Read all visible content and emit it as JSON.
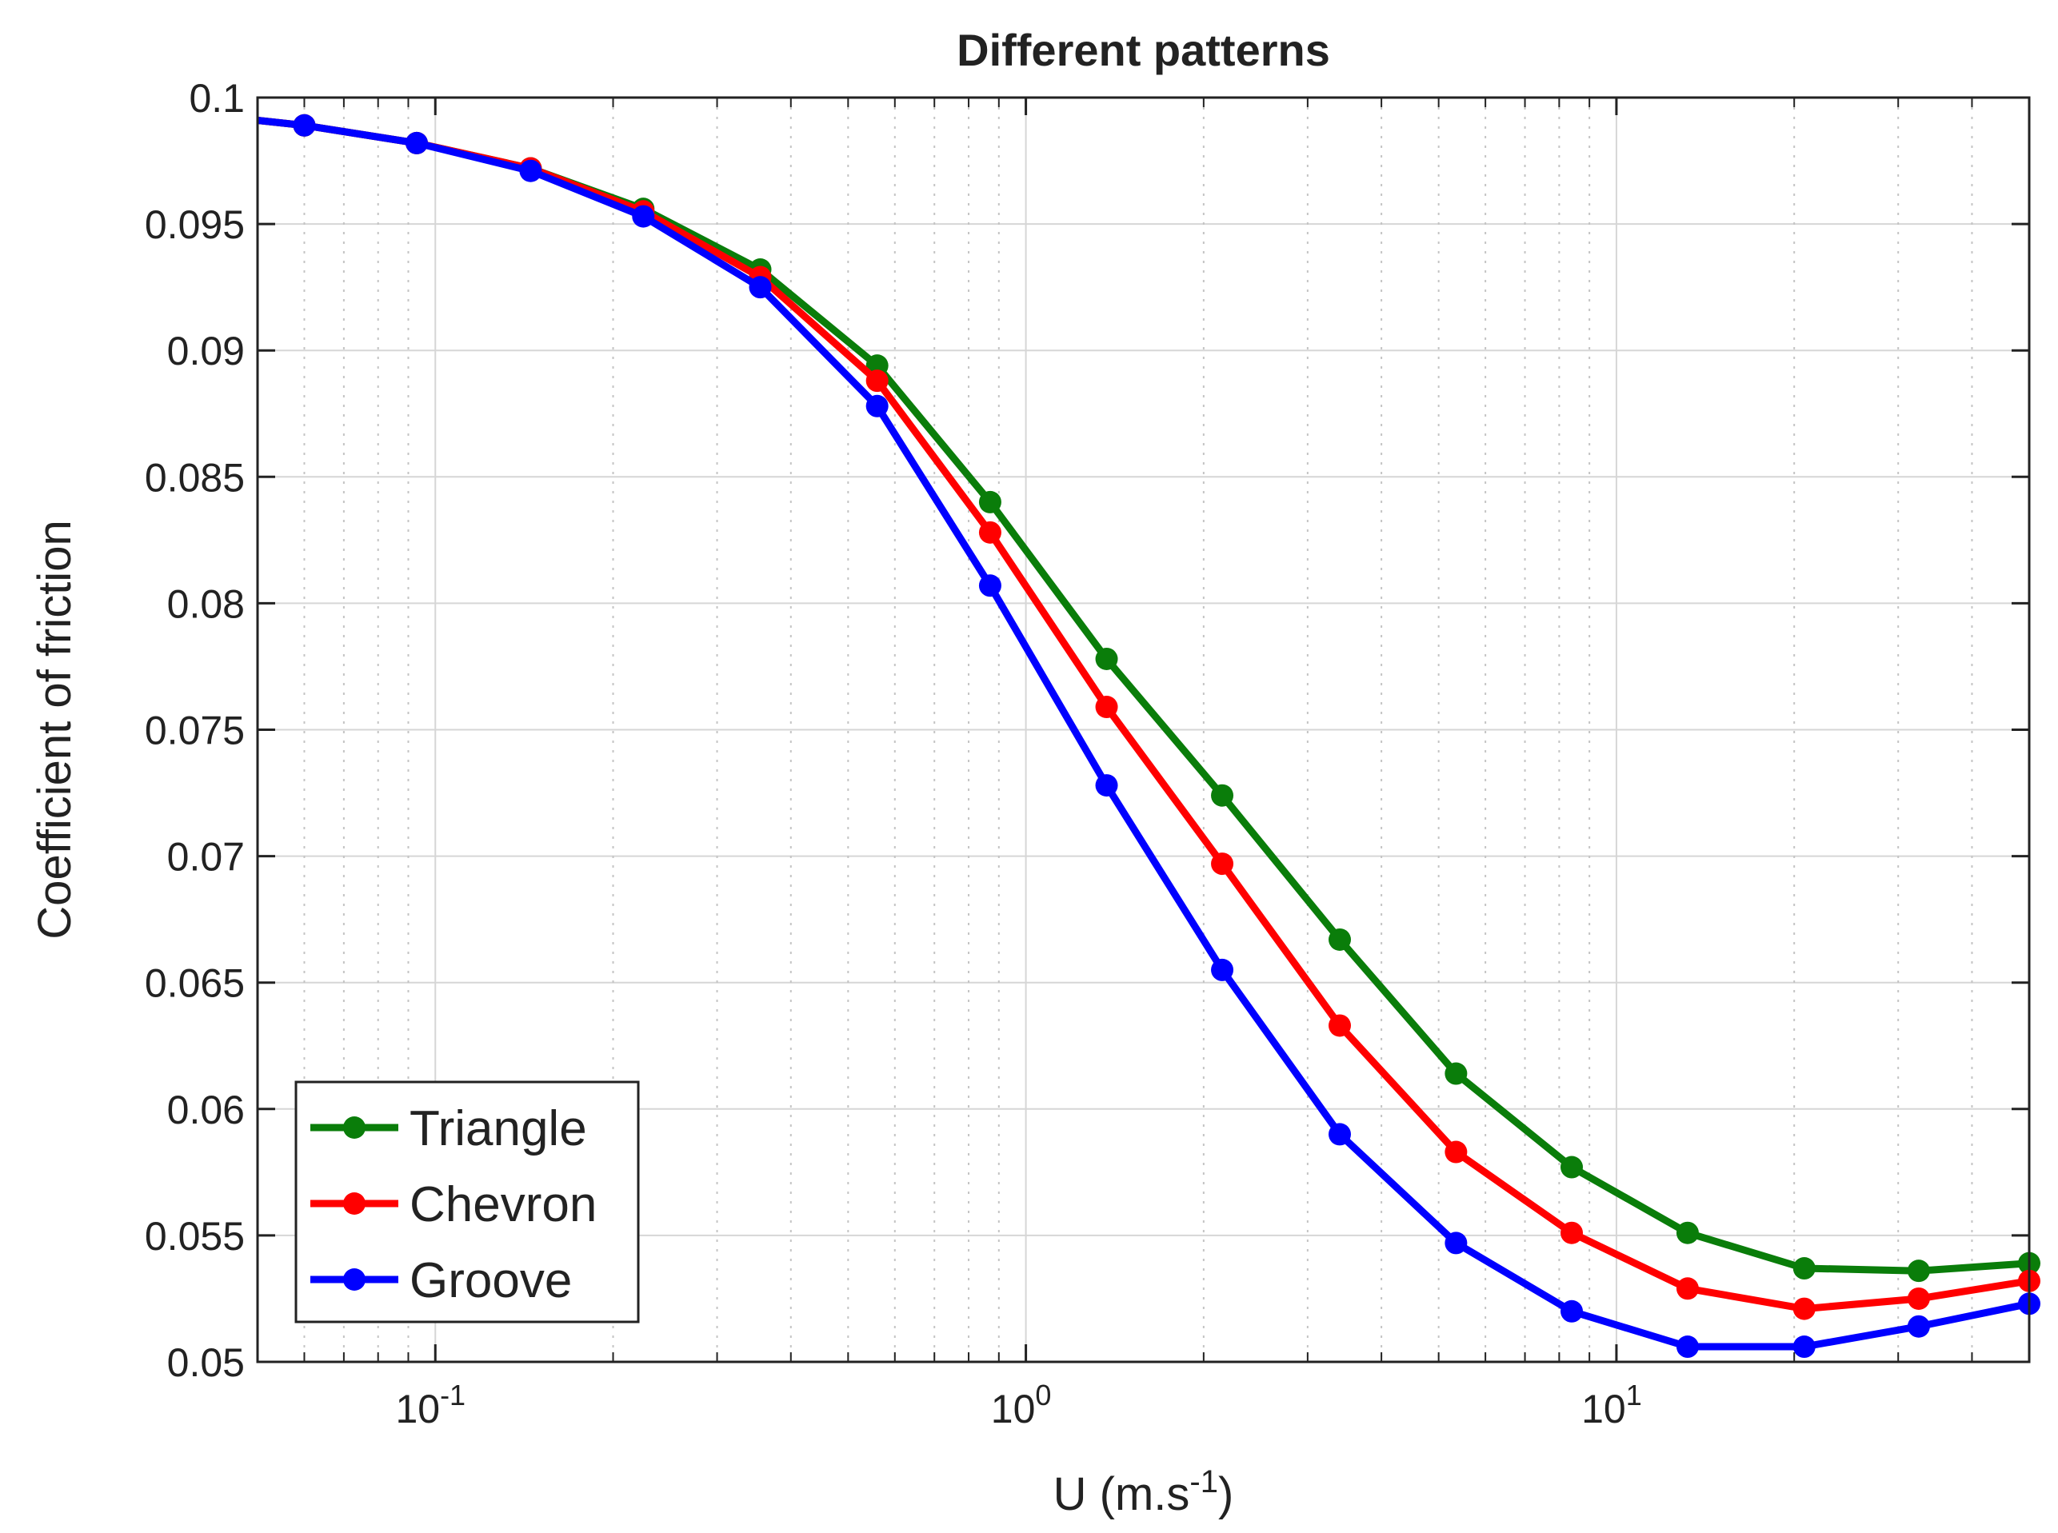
{
  "chart_data": {
    "type": "line",
    "title": "Different patterns",
    "xlabel": "U (m.s",
    "xlabel_sup": "-1",
    "xlabel_close": ")",
    "ylabel": "Coefficient of friction",
    "xscale": "log",
    "xlim": [
      0.05,
      50
    ],
    "ylim": [
      0.05,
      0.1
    ],
    "grid": true,
    "legend_position": "bottom-left",
    "x_ticks": [
      {
        "base": "10",
        "exp": "-1",
        "value": 0.1
      },
      {
        "base": "10",
        "exp": "0",
        "value": 1
      },
      {
        "base": "10",
        "exp": "1",
        "value": 10
      }
    ],
    "y_ticks": [
      "0.05",
      "0.055",
      "0.06",
      "0.065",
      "0.07",
      "0.075",
      "0.08",
      "0.085",
      "0.09",
      "0.095",
      "0.1"
    ],
    "x": [
      0.05,
      0.06,
      0.093,
      0.145,
      0.225,
      0.355,
      0.56,
      0.87,
      1.37,
      2.15,
      3.4,
      5.35,
      8.4,
      13.2,
      20.8,
      32.5,
      50
    ],
    "series": [
      {
        "name": "Triangle",
        "color": "#0a7d0a",
        "values": [
          0.0991,
          0.0989,
          0.0982,
          0.0972,
          0.0956,
          0.0932,
          0.0894,
          0.084,
          0.0778,
          0.0724,
          0.0667,
          0.0614,
          0.0577,
          0.0551,
          0.0537,
          0.0536,
          0.0539
        ]
      },
      {
        "name": "Chevron",
        "color": "#ff0000",
        "values": [
          0.0991,
          0.0989,
          0.0982,
          0.0972,
          0.0955,
          0.0929,
          0.0888,
          0.0828,
          0.0759,
          0.0697,
          0.0633,
          0.0583,
          0.0551,
          0.0529,
          0.0521,
          0.0525,
          0.0532
        ]
      },
      {
        "name": "Groove",
        "color": "#0000ff",
        "values": [
          0.0991,
          0.0989,
          0.0982,
          0.0971,
          0.0953,
          0.0925,
          0.0878,
          0.0807,
          0.0728,
          0.0655,
          0.059,
          0.0547,
          0.052,
          0.0506,
          0.0506,
          0.0514,
          0.0523
        ]
      }
    ]
  }
}
